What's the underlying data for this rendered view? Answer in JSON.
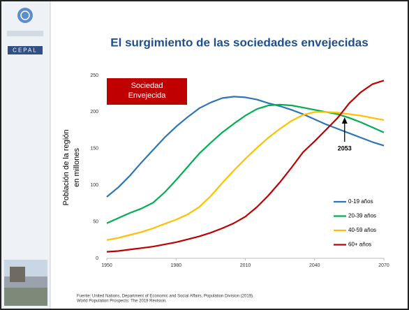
{
  "logo_text": "CEPAL",
  "chart_data": {
    "type": "line",
    "title": "El surgimiento de las sociedades envejecidas",
    "ylabel": [
      "Población de la región",
      "en millones"
    ],
    "x": [
      1950,
      1955,
      1960,
      1965,
      1970,
      1975,
      1980,
      1985,
      1990,
      1995,
      2000,
      2005,
      2010,
      2015,
      2020,
      2025,
      2030,
      2035,
      2040,
      2045,
      2050,
      2055,
      2060,
      2065,
      2070
    ],
    "xlim": [
      1950,
      2070
    ],
    "xticks": [
      1950,
      1980,
      2010,
      2040,
      2070
    ],
    "ylim": [
      0,
      250
    ],
    "yticks": [
      0,
      50,
      100,
      150,
      200,
      250
    ],
    "grid": false,
    "legend": "right",
    "series": [
      {
        "name": "0-19 años",
        "color": "#2e75b6",
        "values": [
          84,
          97,
          113,
          131,
          148,
          165,
          180,
          193,
          205,
          213,
          219,
          221,
          220,
          217,
          212,
          208,
          203,
          197,
          190,
          183,
          177,
          171,
          165,
          159,
          154
        ]
      },
      {
        "name": "20-39 años",
        "color": "#00b050",
        "values": [
          48,
          55,
          62,
          68,
          76,
          90,
          107,
          125,
          143,
          158,
          172,
          184,
          195,
          204,
          209,
          210,
          209,
          206,
          203,
          200,
          197,
          192,
          186,
          179,
          172
        ]
      },
      {
        "name": "40-59 años",
        "color": "#ffc000",
        "values": [
          25,
          28,
          32,
          36,
          41,
          47,
          53,
          60,
          70,
          85,
          103,
          120,
          136,
          151,
          165,
          177,
          188,
          196,
          200,
          200,
          199,
          197,
          195,
          192,
          189
        ]
      },
      {
        "name": "60+ años",
        "color": "#c00000",
        "values": [
          9,
          10,
          12,
          14,
          16,
          19,
          22,
          26,
          30,
          35,
          41,
          48,
          57,
          70,
          86,
          104,
          124,
          145,
          160,
          176,
          192,
          212,
          227,
          238,
          243
        ]
      }
    ],
    "box_label": [
      "Sociedad",
      "Envejecida"
    ],
    "box_color": "#c00000",
    "crossover_year": 2053,
    "source": [
      "Fuente: United Nations, Department of Economic and Social Affairs, Population Division (2019).",
      "World Population Prospects: The 2019 Revision."
    ]
  }
}
